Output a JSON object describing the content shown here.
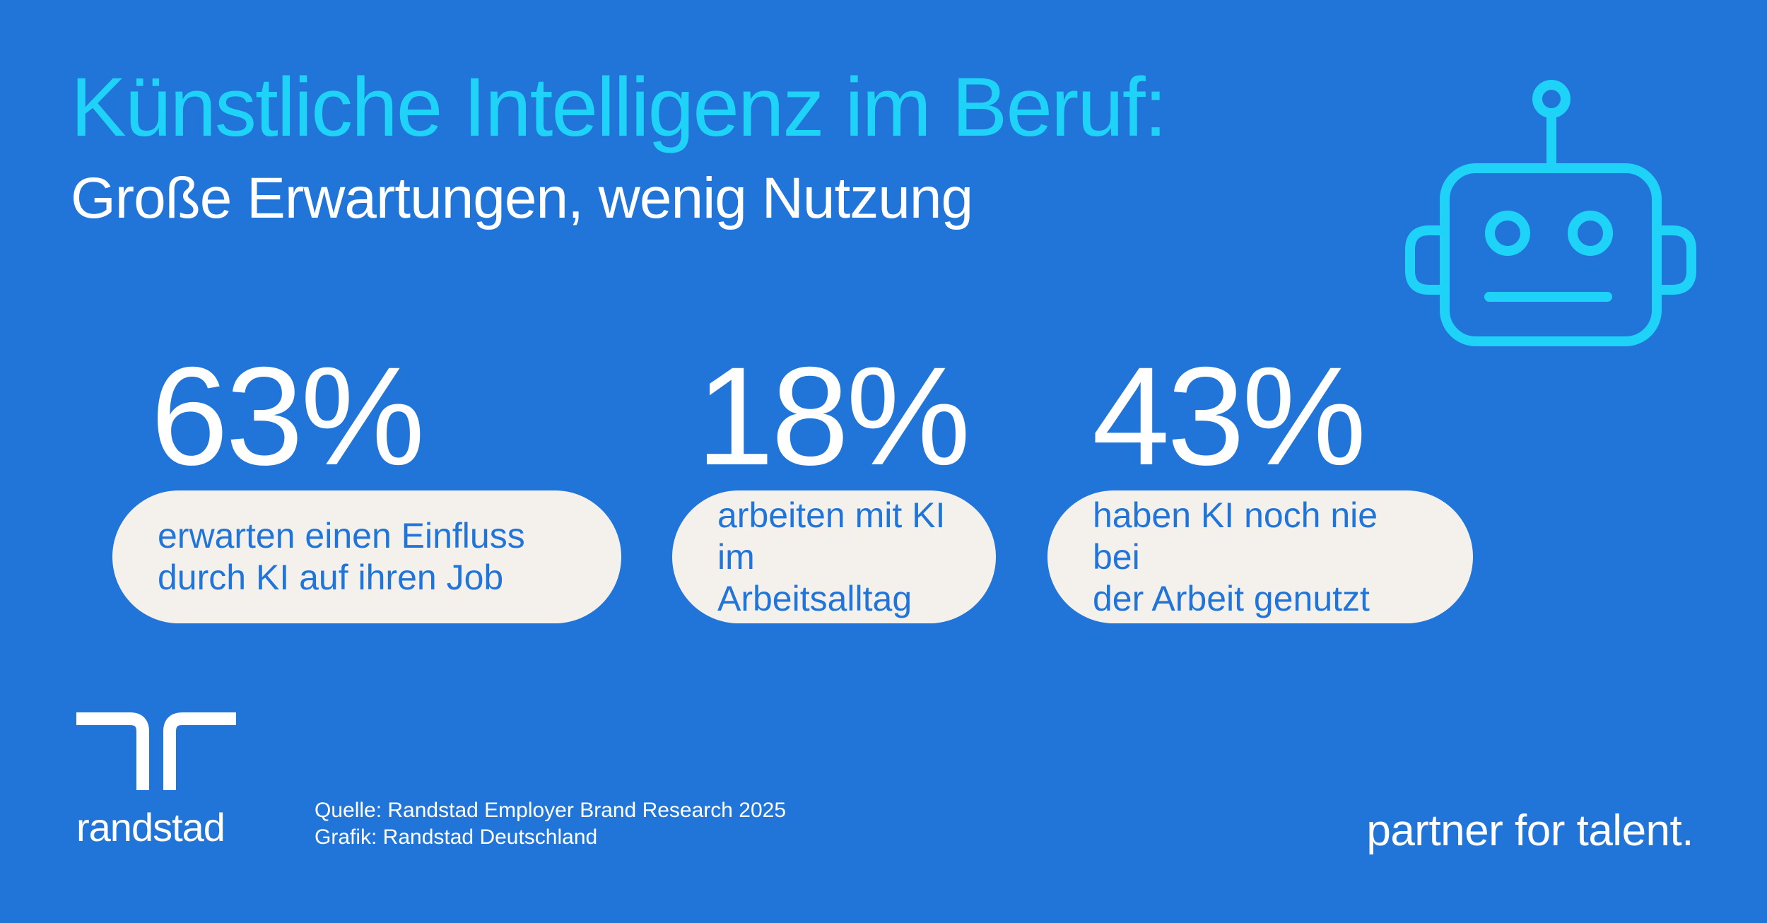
{
  "colors": {
    "background": "#2175d9",
    "accent": "#1ed3f7",
    "pill_background": "#f4f1ec",
    "pill_text": "#2175d9",
    "text": "#ffffff"
  },
  "header": {
    "title": "Künstliche Intelligenz im Beruf:",
    "subtitle": "Große Erwartungen, wenig Nutzung"
  },
  "illustration": {
    "icon": "robot-icon"
  },
  "stats": [
    {
      "value": "63%",
      "label": "erwarten einen Einfluss\ndurch KI auf ihren Job"
    },
    {
      "value": "18%",
      "label": "arbeiten mit KI\nim Arbeitsalltag"
    },
    {
      "value": "43%",
      "label": "haben KI noch nie bei\nder Arbeit genutzt"
    }
  ],
  "footer": {
    "logo_icon": "randstad-logo-icon",
    "logo_text": "randstad",
    "source_line": "Quelle: Randstad Employer Brand Research 2025",
    "graphic_line": "Grafik: Randstad Deutschland",
    "tagline": "partner for talent."
  }
}
